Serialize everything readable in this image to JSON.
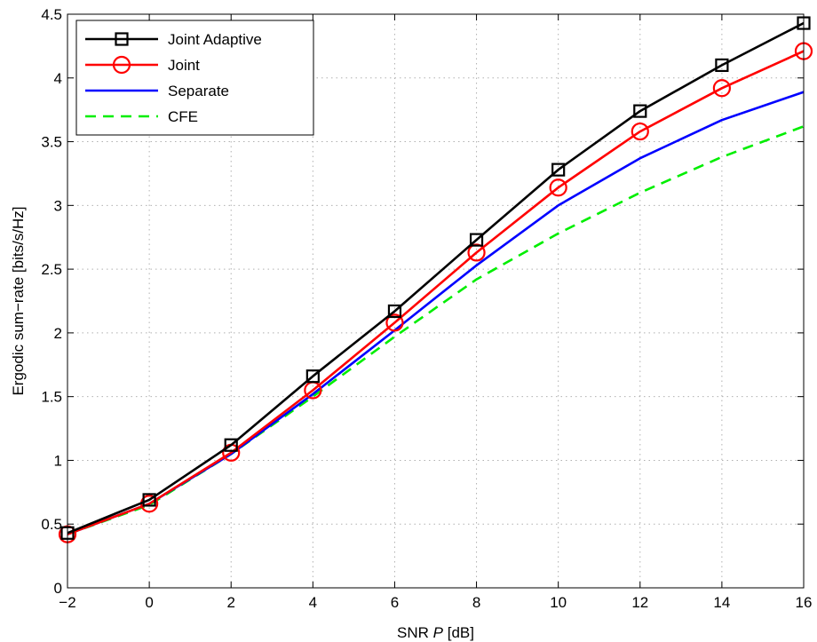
{
  "chart_data": {
    "type": "line",
    "title": "",
    "xlabel_prefix": "SNR ",
    "xlabel_var": "P",
    "xlabel_suffix": " [dB]",
    "ylabel": "Ergodic sum−rate [bits/s/Hz]",
    "xlim": [
      -2,
      16
    ],
    "ylim": [
      0,
      4.5
    ],
    "xticks": [
      -2,
      0,
      2,
      4,
      6,
      8,
      10,
      12,
      14,
      16
    ],
    "xtick_labels": [
      "−2",
      "0",
      "2",
      "4",
      "6",
      "8",
      "10",
      "12",
      "14",
      "16"
    ],
    "yticks": [
      0,
      0.5,
      1,
      1.5,
      2,
      2.5,
      3,
      3.5,
      4,
      4.5
    ],
    "ytick_labels": [
      "0",
      "0.5",
      "1",
      "1.5",
      "2",
      "2.5",
      "3",
      "3.5",
      "4",
      "4.5"
    ],
    "grid": true,
    "legend_position": "top-left",
    "x": [
      -2,
      0,
      2,
      4,
      6,
      8,
      10,
      12,
      14,
      16
    ],
    "series": [
      {
        "name": "Joint Adaptive",
        "color": "#000000",
        "line_style": "solid",
        "marker": "square",
        "values": [
          0.43,
          0.69,
          1.12,
          1.66,
          2.17,
          2.73,
          3.28,
          3.74,
          4.1,
          4.43
        ]
      },
      {
        "name": "Joint",
        "color": "#ff0000",
        "line_style": "solid",
        "marker": "circle",
        "values": [
          0.42,
          0.66,
          1.06,
          1.55,
          2.08,
          2.63,
          3.14,
          3.58,
          3.92,
          4.21
        ]
      },
      {
        "name": "Separate",
        "color": "#0000ff",
        "line_style": "solid",
        "marker": "none",
        "values": [
          0.42,
          0.66,
          1.05,
          1.52,
          2.02,
          2.53,
          3.0,
          3.37,
          3.67,
          3.89
        ]
      },
      {
        "name": "CFE",
        "color": "#00ee00",
        "line_style": "dashed",
        "marker": "none",
        "values": [
          0.42,
          0.65,
          1.05,
          1.5,
          1.97,
          2.42,
          2.78,
          3.1,
          3.38,
          3.62
        ]
      }
    ]
  }
}
